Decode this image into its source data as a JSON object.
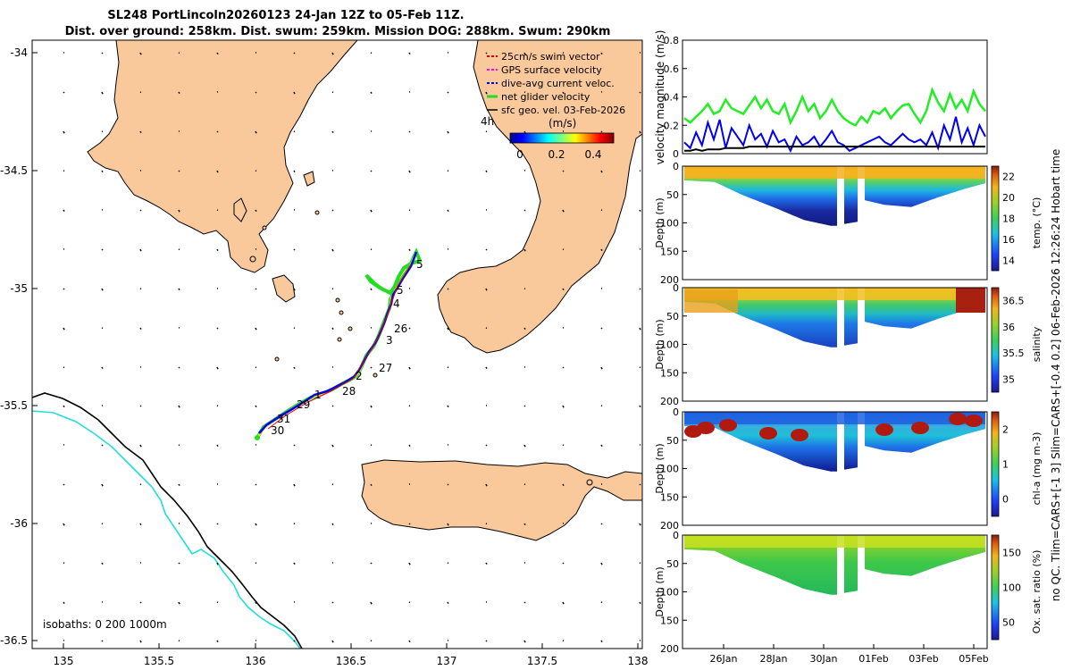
{
  "figure": {
    "title_line1": "SL248 PortLincoln20260123 24-Jan 12Z to 05-Feb 11Z.",
    "title_line2": "Dist. over ground: 258km. Dist. swum: 259km. Mission DOG: 288km. Swum: 290km",
    "side_label": "no QC. Tlim=CARS+[-1 3] Slim=CARS+[-0.4 0.2] 06-Feb-2026 12:26:24 Hobart time"
  },
  "map": {
    "x_ticks": [
      "135",
      "135.5",
      "136",
      "136.5",
      "137",
      "137.5",
      "138"
    ],
    "y_ticks": [
      "-34",
      "-34.5",
      "-35",
      "-35.5",
      "-36",
      "-36.5"
    ],
    "legend": [
      {
        "label": "25cm/s swim vector",
        "color": "#dd0000"
      },
      {
        "label": "GPS surface velocity",
        "color": "#ff00ff"
      },
      {
        "label": "dive-avg current veloc.",
        "color": "#0000ff"
      },
      {
        "label": "net glider velocity",
        "color": "#22dd22"
      },
      {
        "label": "sfc geo. vel. 03-Feb-2026",
        "color": "#000000"
      }
    ],
    "colorbar_label": "(m/s)",
    "colorbar_prefix": "4h",
    "colorbar_ticks": [
      "0",
      "0.2",
      "0.4"
    ],
    "day_labels": [
      "5",
      "5",
      "4",
      "26",
      "3",
      "27",
      "2",
      "28",
      "1",
      "29",
      "31",
      "30"
    ],
    "isobaths_label": "isobaths: 0    200  1000m",
    "colors": {
      "land": "#f9c89b",
      "coast_200": "#000000",
      "coast_1000": "#22dddd"
    }
  },
  "chart_data": [
    {
      "type": "line",
      "title": "",
      "ylabel": "velocity magnitude (m/s)",
      "ylim": [
        0,
        0.8
      ],
      "yticks": [
        "0",
        "0.2",
        "0.4",
        "0.6",
        "0.8"
      ],
      "series": [
        {
          "name": "net glider velocity",
          "color": "#22ee22",
          "values": [
            0.25,
            0.22,
            0.26,
            0.3,
            0.35,
            0.28,
            0.3,
            0.38,
            0.32,
            0.3,
            0.28,
            0.34,
            0.4,
            0.32,
            0.38,
            0.3,
            0.28,
            0.35,
            0.22,
            0.3,
            0.4,
            0.3,
            0.35,
            0.25,
            0.3,
            0.38,
            0.3,
            0.25,
            0.22,
            0.2,
            0.26,
            0.22,
            0.3,
            0.28,
            0.32,
            0.25,
            0.3,
            0.34,
            0.35,
            0.28,
            0.22,
            0.3,
            0.45,
            0.36,
            0.3,
            0.42,
            0.32,
            0.38,
            0.3,
            0.44,
            0.35,
            0.3
          ]
        },
        {
          "name": "dive-avg current veloc.",
          "color": "#0000ee",
          "values": [
            0.08,
            0.04,
            0.15,
            0.06,
            0.22,
            0.1,
            0.24,
            0.04,
            0.18,
            0.12,
            0.06,
            0.2,
            0.1,
            0.14,
            0.05,
            0.16,
            0.08,
            0.1,
            0.02,
            0.12,
            0.06,
            0.08,
            0.12,
            0.05,
            0.1,
            0.16,
            0.08,
            0.06,
            0.02,
            0.04,
            0.06,
            0.08,
            0.1,
            0.12,
            0.08,
            0.06,
            0.1,
            0.14,
            0.1,
            0.08,
            0.1,
            0.06,
            0.15,
            0.04,
            0.2,
            0.1,
            0.26,
            0.08,
            0.18,
            0.06,
            0.2,
            0.12
          ]
        },
        {
          "name": "sfc geo. vel.",
          "color": "#000000",
          "values": [
            0.02,
            0.02,
            0.03,
            0.02,
            0.03,
            0.03,
            0.03,
            0.04,
            0.04,
            0.04,
            0.04,
            0.05,
            0.05,
            0.05,
            0.05,
            0.05,
            0.05,
            0.05,
            0.05,
            0.05,
            0.05,
            0.05,
            0.05,
            0.05,
            0.05,
            0.05,
            0.05,
            0.05,
            0.05,
            0.05,
            0.05,
            0.05,
            0.05,
            0.05,
            0.05,
            0.05,
            0.05,
            0.05,
            0.05,
            0.05,
            0.05,
            0.05,
            0.05,
            0.05,
            0.05,
            0.05,
            0.05,
            0.05,
            0.05,
            0.05,
            0.05,
            0.05
          ]
        }
      ]
    },
    {
      "type": "heatmap",
      "variable": "temp",
      "ylabel": "Depth (m)",
      "cbar_label": "temp. (°C)",
      "cbar_ticks": [
        "14",
        "16",
        "18",
        "20",
        "22"
      ],
      "ylim": [
        200,
        0
      ],
      "yticks": [
        "0",
        "50",
        "100",
        "150",
        "200"
      ]
    },
    {
      "type": "heatmap",
      "variable": "salinity",
      "ylabel": "Depth (m)",
      "cbar_label": "salinity",
      "cbar_ticks": [
        "35",
        "35.5",
        "36",
        "36.5"
      ],
      "ylim": [
        200,
        0
      ],
      "yticks": [
        "0",
        "50",
        "100",
        "150",
        "200"
      ]
    },
    {
      "type": "heatmap",
      "variable": "chl",
      "ylabel": "Depth (m)",
      "cbar_label": "chl-a  (mg m-3)",
      "cbar_ticks": [
        "0",
        "1",
        "2"
      ],
      "ylim": [
        200,
        0
      ],
      "yticks": [
        "0",
        "50",
        "100",
        "150",
        "200"
      ]
    },
    {
      "type": "heatmap",
      "variable": "oxy",
      "ylabel": "Depth (m)",
      "cbar_label": "Ox. sat. ratio (%)",
      "cbar_ticks": [
        "50",
        "100",
        "150"
      ],
      "ylim": [
        200,
        0
      ],
      "yticks": [
        "0",
        "50",
        "100",
        "150",
        "200"
      ],
      "xticks": [
        "26Jan",
        "28Jan",
        "30Jan",
        "01Feb",
        "03Feb",
        "05Feb"
      ]
    }
  ]
}
